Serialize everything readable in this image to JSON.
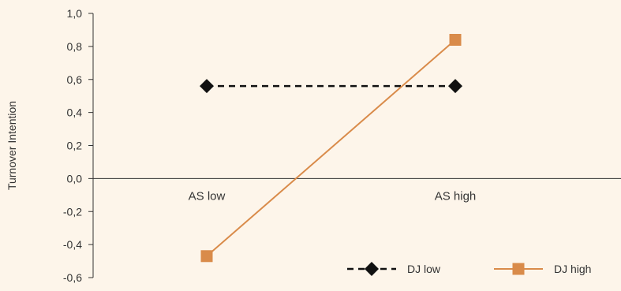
{
  "chart_data": {
    "type": "line",
    "title": "",
    "xlabel": "",
    "ylabel": "Turnover Intention",
    "categories": [
      "AS low",
      "AS high"
    ],
    "ylim": [
      -0.6,
      1.0
    ],
    "yticks": [
      "1,0",
      "0,8",
      "0,6",
      "0,4",
      "0,2",
      "0,0",
      "-0,2",
      "-0,4",
      "-0,6"
    ],
    "ytick_values": [
      1.0,
      0.8,
      0.6,
      0.4,
      0.2,
      0.0,
      -0.2,
      -0.4,
      -0.6
    ],
    "grid": false,
    "legend_position": "bottom-right",
    "series": [
      {
        "name": "DJ low",
        "values": [
          0.56,
          0.56
        ],
        "color": "#111111",
        "dash": "dashed",
        "marker": "diamond"
      },
      {
        "name": "DJ high",
        "values": [
          -0.47,
          0.84
        ],
        "color": "#d98b4a",
        "dash": "solid",
        "marker": "square"
      }
    ]
  }
}
